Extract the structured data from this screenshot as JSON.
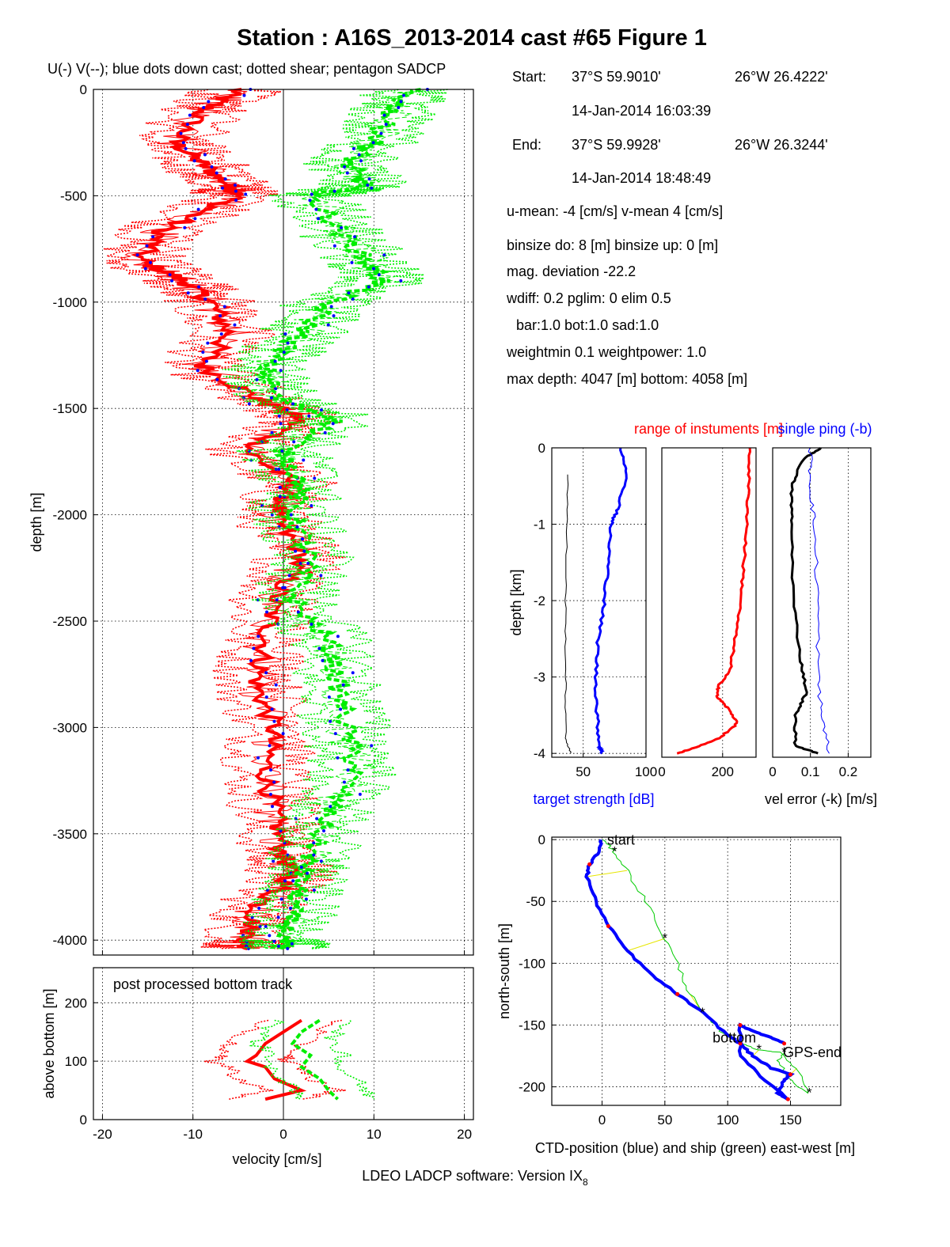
{
  "figure": {
    "title": "Station : A16S_2013-2014 cast #65  Figure 1",
    "footer_main": "LDEO LADCP software: Version IX",
    "footer_sub": "8"
  },
  "info": {
    "start_label": "Start:",
    "start_lat": "37°S 59.9010'",
    "start_lon": "26°W 26.4222'",
    "start_time": "14-Jan-2014 16:03:39",
    "end_label": "End:",
    "end_lat": "37°S 59.9928'",
    "end_lon": "26°W 26.3244'",
    "end_time": "14-Jan-2014 18:48:49",
    "line_umean": "u-mean:  -4 [cm/s]    v-mean   4 [cm/s]",
    "line_binsize": "binsize do: 8 [m]  binsize up:  0 [m]",
    "line_magdev": "mag. deviation -22.2",
    "line_wdiff": "wdiff: 0.2  pglim: 0  elim 0.5",
    "line_bar": "bar:1.0 bot:1.0 sad:1.0",
    "line_weight": "weightmin 0.1  weightpower: 1.0",
    "line_depth": "max depth: 4047 [m]   bottom: 4058 [m]"
  },
  "chart_data": [
    {
      "id": "velocity-profile",
      "type": "line",
      "title": "U(-) V(--); blue dots down cast; dotted shear; pentagon SADCP",
      "xlabel": "",
      "ylabel": "depth [m]",
      "xlim": [
        -21,
        21
      ],
      "ylim": [
        -4070,
        0
      ],
      "xticks": [
        -20,
        -10,
        0,
        10,
        20
      ],
      "yticks": [
        0,
        -500,
        -1000,
        -1500,
        -2000,
        -2500,
        -3000,
        -3500,
        -4000
      ],
      "grid": true,
      "series": [
        {
          "name": "U",
          "color": "#ff0000",
          "depth": [
            0,
            -100,
            -250,
            -350,
            -450,
            -500,
            -650,
            -800,
            -900,
            -1000,
            -1150,
            -1300,
            -1450,
            -1550,
            -1700,
            -1850,
            -2000,
            -2200,
            -2400,
            -2600,
            -2800,
            -3000,
            -3200,
            -3400,
            -3600,
            -3700,
            -3850,
            -4000,
            -4040
          ],
          "values": [
            -5,
            -9,
            -12,
            -9,
            -6,
            -5,
            -13,
            -16,
            -11,
            -8,
            -6,
            -9,
            -3,
            2,
            -4,
            1,
            -1,
            2,
            -1,
            -2,
            -3,
            -1,
            -2,
            -1,
            0,
            1,
            -3,
            -4,
            -4
          ]
        },
        {
          "name": "V",
          "color": "#00ee00",
          "depth": [
            0,
            -100,
            -250,
            -350,
            -450,
            -500,
            -650,
            -800,
            -900,
            -1000,
            -1150,
            -1300,
            -1450,
            -1550,
            -1700,
            -1850,
            -2000,
            -2200,
            -2400,
            -2600,
            -2800,
            -3000,
            -3200,
            -3400,
            -3600,
            -3700,
            -3850,
            -4000,
            -4040
          ],
          "values": [
            14,
            12,
            10,
            7,
            9,
            3,
            6,
            9,
            11,
            5,
            2,
            -2,
            -1,
            6,
            0,
            2,
            1,
            3,
            1,
            5,
            6,
            7,
            8,
            5,
            3,
            2,
            1,
            0,
            0
          ]
        }
      ]
    },
    {
      "id": "bottom-track",
      "type": "line",
      "title": "post processed bottom track",
      "xlabel": "velocity [cm/s]",
      "ylabel": "above bottom [m]",
      "xlim": [
        -21,
        21
      ],
      "ylim": [
        0,
        260
      ],
      "xticks": [
        -20,
        -10,
        0,
        10,
        20
      ],
      "yticks": [
        0,
        100,
        200
      ],
      "grid": true,
      "series": [
        {
          "name": "U",
          "color": "#ff0000",
          "height": [
            170,
            150,
            130,
            110,
            100,
            90,
            70,
            50,
            35
          ],
          "values": [
            2,
            0,
            -2,
            -3,
            -4,
            -2,
            -1,
            2,
            -2
          ]
        },
        {
          "name": "V",
          "color": "#00ee00",
          "height": [
            170,
            150,
            130,
            110,
            90,
            70,
            50,
            35
          ],
          "values": [
            4,
            2,
            1,
            3,
            2,
            4,
            5,
            6
          ]
        }
      ]
    },
    {
      "id": "target-strength",
      "type": "line",
      "title": "",
      "xlabel": "target strength [dB]",
      "ylabel": "depth [km]",
      "xlim": [
        25,
        100
      ],
      "ylim": [
        -4.05,
        0
      ],
      "xticks": [
        50,
        100
      ],
      "yticks": [
        0,
        -1,
        -2,
        -3,
        -4
      ],
      "grid": true,
      "series": [
        {
          "name": "",
          "color": "#0000ff",
          "depth": [
            0,
            -0.3,
            -0.8,
            -1.0,
            -1.5,
            -2.0,
            -2.5,
            -3.0,
            -3.5,
            -3.9,
            -4.0
          ],
          "values": [
            80,
            85,
            78,
            72,
            70,
            67,
            62,
            60,
            61,
            63,
            65
          ]
        },
        {
          "name": "",
          "color": "#000000",
          "depth": [
            -0.35,
            -1.0,
            -2.0,
            -3.0,
            -3.8,
            -4.0
          ],
          "values": [
            38,
            37,
            36,
            36,
            36,
            40
          ]
        }
      ]
    },
    {
      "id": "range-instruments",
      "type": "line",
      "title": "range of instuments [m]",
      "xlabel": "",
      "ylabel": "",
      "xlim": [
        0,
        310
      ],
      "ylim": [
        -4.05,
        0
      ],
      "xticks": [
        0,
        200
      ],
      "yticks": [],
      "grid": true,
      "series": [
        {
          "name": "",
          "color": "#ff0000",
          "depth": [
            0,
            -0.5,
            -1.0,
            -1.5,
            -2.0,
            -2.5,
            -2.9,
            -3.1,
            -3.25,
            -3.4,
            -3.6,
            -3.8,
            -3.95,
            -4.0
          ],
          "values": [
            290,
            285,
            280,
            270,
            260,
            240,
            225,
            190,
            180,
            215,
            250,
            190,
            90,
            50
          ]
        }
      ]
    },
    {
      "id": "vel-error",
      "type": "line",
      "title": "single ping (-b)",
      "xlabel": "vel error (-k) [m/s]",
      "ylabel": "",
      "xlim": [
        0,
        0.26
      ],
      "ylim": [
        -4.05,
        0
      ],
      "xticks": [
        0,
        0.1,
        0.2
      ],
      "yticks": [],
      "grid": true,
      "series": [
        {
          "name": "",
          "color": "#000000",
          "depth": [
            0,
            -0.15,
            -0.5,
            -1.0,
            -2.0,
            -2.8,
            -3.2,
            -3.5,
            -3.9,
            -4.0
          ],
          "values": [
            0.13,
            0.08,
            0.05,
            0.05,
            0.055,
            0.075,
            0.09,
            0.06,
            0.06,
            0.12
          ]
        },
        {
          "name": "",
          "color": "#0000ff",
          "depth": [
            0,
            -0.5,
            -1.0,
            -2.0,
            -3.0,
            -3.5,
            -4.0
          ],
          "values": [
            0.1,
            0.1,
            0.11,
            0.12,
            0.12,
            0.13,
            0.15
          ]
        }
      ]
    },
    {
      "id": "position",
      "type": "line",
      "title": "",
      "xlabel": "CTD-position (blue) and ship (green) east-west [m]",
      "ylabel": "north-south [m]",
      "xlim": [
        -40,
        190
      ],
      "ylim": [
        -215,
        2
      ],
      "xticks": [
        0,
        50,
        100,
        150
      ],
      "yticks": [
        0,
        -50,
        -100,
        -150,
        -200
      ],
      "grid": true,
      "annotations": [
        "start",
        "bottom",
        "GPS-end"
      ],
      "series": [
        {
          "name": "",
          "color": "#0000ff",
          "x": [
            0,
            -3,
            -10,
            -12,
            -5,
            5,
            20,
            40,
            60,
            80,
            100,
            110,
            120,
            135,
            150,
            145,
            140,
            148,
            130,
            110,
            110,
            120,
            135,
            145
          ],
          "y": [
            0,
            -10,
            -20,
            -30,
            -50,
            -70,
            -90,
            -110,
            -125,
            -140,
            -158,
            -165,
            -175,
            -185,
            -190,
            -195,
            -205,
            -210,
            -195,
            -175,
            -150,
            -155,
            -160,
            -165
          ]
        },
        {
          "name": "",
          "color": "#00cc00",
          "x": [
            0,
            10,
            20,
            35,
            50,
            62,
            70,
            80,
            95,
            110,
            125,
            140,
            155,
            165,
            150,
            140,
            145
          ],
          "y": [
            0,
            -10,
            -25,
            -50,
            -80,
            -105,
            -125,
            -140,
            -155,
            -165,
            -170,
            -172,
            -185,
            -205,
            -195,
            -180,
            -172
          ]
        }
      ]
    }
  ]
}
